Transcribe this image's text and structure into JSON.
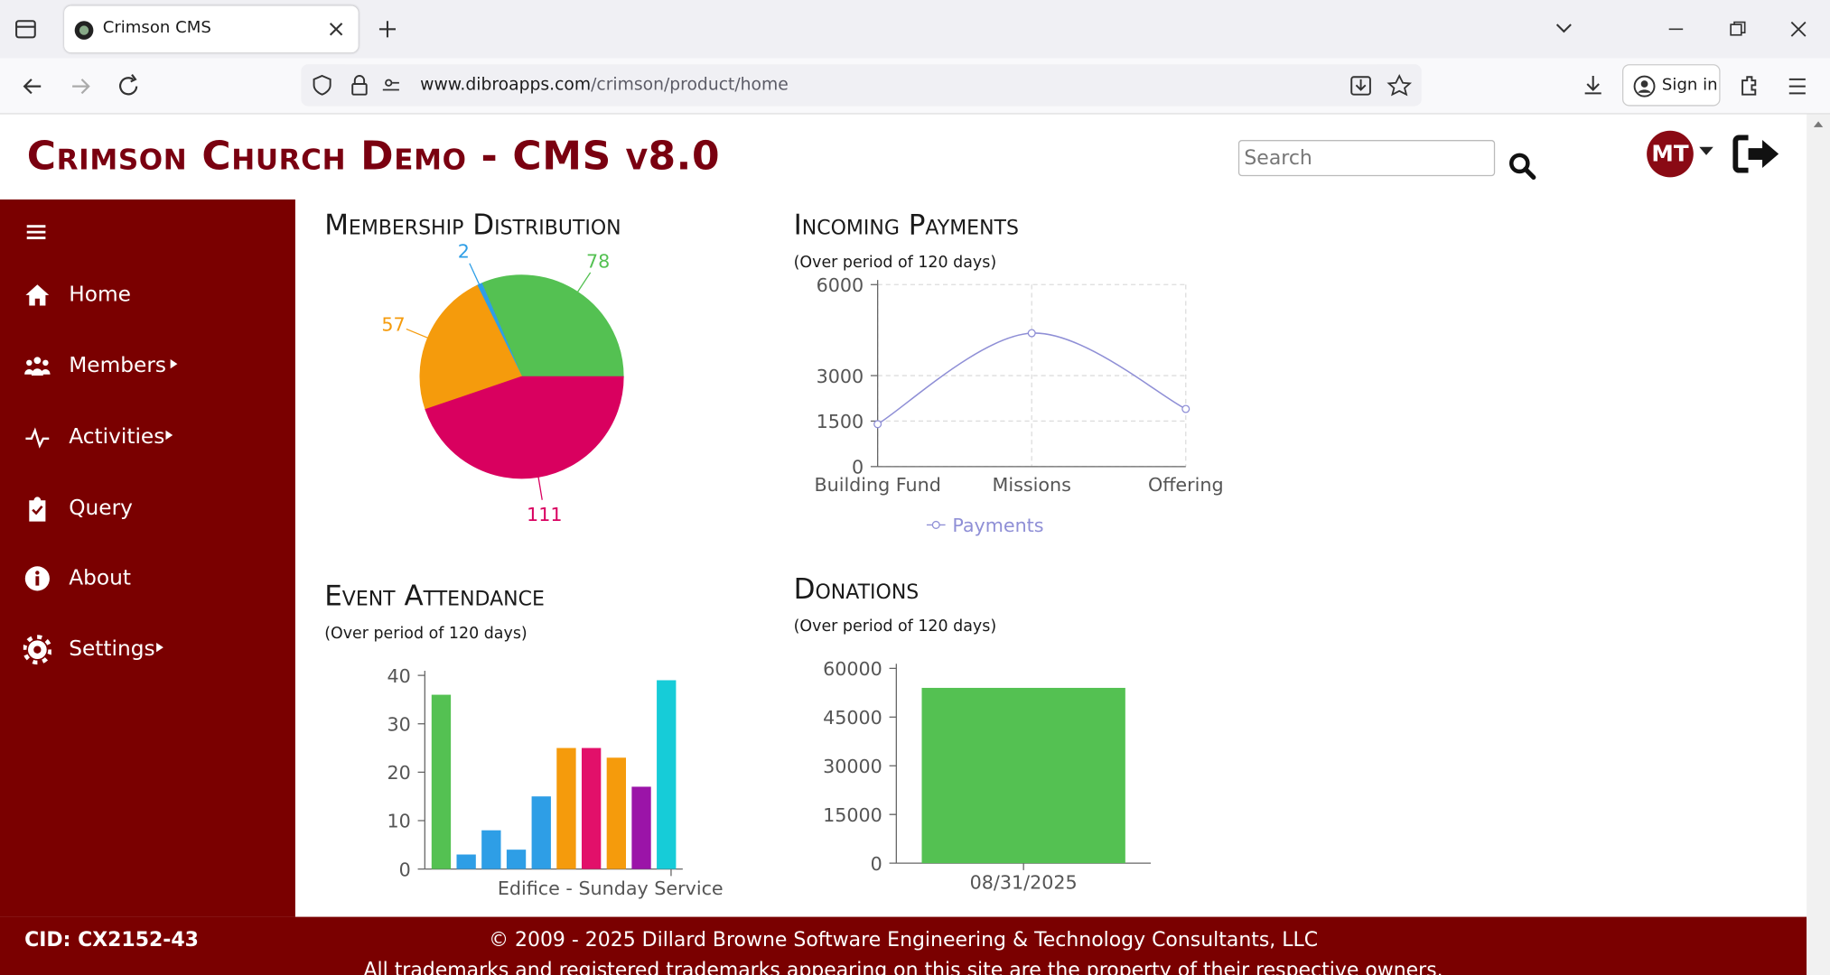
{
  "browser": {
    "tab_title": "Crimson CMS",
    "url_domain": "www.dibroapps.com",
    "url_path": "/crimson/product/home",
    "sign_in": "Sign in"
  },
  "header": {
    "title": "Crimson Church Demo - CMS v8.0",
    "search_placeholder": "Search",
    "avatar": "MT"
  },
  "sidebar": {
    "items": [
      "Home",
      "Members",
      "Activities",
      "Query",
      "About",
      "Settings"
    ],
    "cid": "CID: CX2152-43"
  },
  "footer": {
    "copyright": "© 2009 - 2025 Dillard Browne Software Engineering & Technology Consultants, LLC",
    "trademarks": "All trademarks and registered trademarks appearing on this site are the property of their respective owners."
  },
  "chart_data": [
    {
      "type": "pie",
      "title": "Membership Distribution",
      "values": [
        78,
        2,
        57,
        111
      ],
      "colors": [
        "#54c152",
        "#2e9ee6",
        "#f59b0c",
        "#d9005f"
      ]
    },
    {
      "type": "line",
      "title": "Incoming Payments",
      "subtitle": "(Over period of 120 days)",
      "categories": [
        "Building Fund",
        "Missions",
        "Offering"
      ],
      "series": [
        {
          "name": "Payments",
          "color": "#8f8fd6",
          "values": [
            1400,
            4400,
            1900
          ]
        }
      ],
      "ylim": [
        0,
        6000
      ],
      "yticks": [
        0,
        1500,
        3000,
        6000
      ],
      "grid": true
    },
    {
      "type": "bar",
      "title": "Event Attendance",
      "subtitle": "(Over period of 120 days)",
      "categories": [
        "Edifice - Sunday Service"
      ],
      "series": [
        {
          "color": "#54c152",
          "values": [
            36
          ]
        },
        {
          "color": "#2e9ee6",
          "values": [
            3
          ]
        },
        {
          "color": "#2e9ee6",
          "values": [
            8
          ]
        },
        {
          "color": "#2e9ee6",
          "values": [
            4
          ]
        },
        {
          "color": "#2e9ee6",
          "values": [
            15
          ]
        },
        {
          "color": "#f59b0c",
          "values": [
            25
          ]
        },
        {
          "color": "#e2106a",
          "values": [
            25
          ]
        },
        {
          "color": "#f59b0c",
          "values": [
            23
          ]
        },
        {
          "color": "#9b14a8",
          "values": [
            17
          ]
        },
        {
          "color": "#16ccd8",
          "values": [
            39
          ]
        }
      ],
      "ylim": [
        0,
        40
      ],
      "yticks": [
        0,
        10,
        20,
        30,
        40
      ]
    },
    {
      "type": "bar",
      "title": "Donations",
      "subtitle": "(Over period of 120 days)",
      "categories": [
        "08/31/2025"
      ],
      "series": [
        {
          "color": "#54c152",
          "values": [
            54000
          ]
        }
      ],
      "ylim": [
        0,
        60000
      ],
      "yticks": [
        0,
        15000,
        30000,
        45000,
        60000
      ]
    }
  ]
}
